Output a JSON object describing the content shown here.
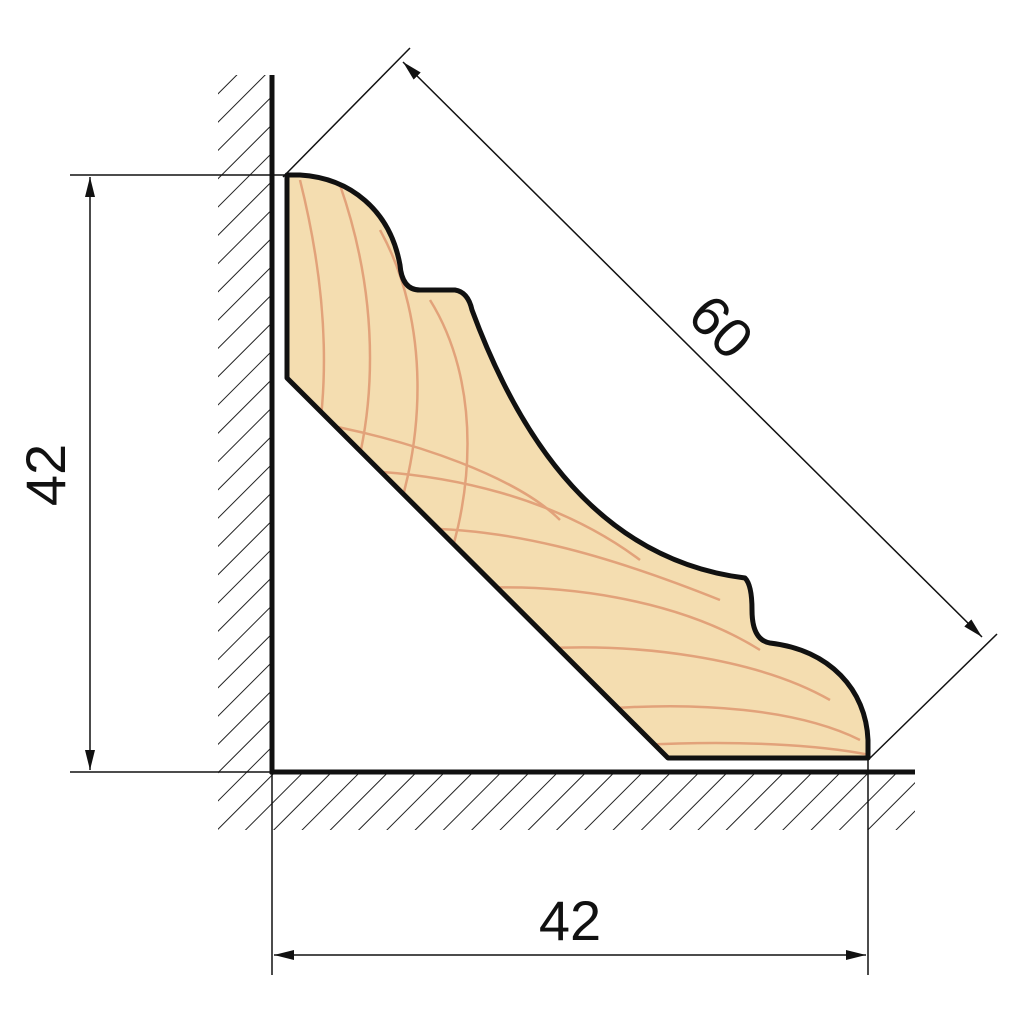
{
  "dimensions": {
    "height": "42",
    "width": "42",
    "diagonal": "60"
  }
}
